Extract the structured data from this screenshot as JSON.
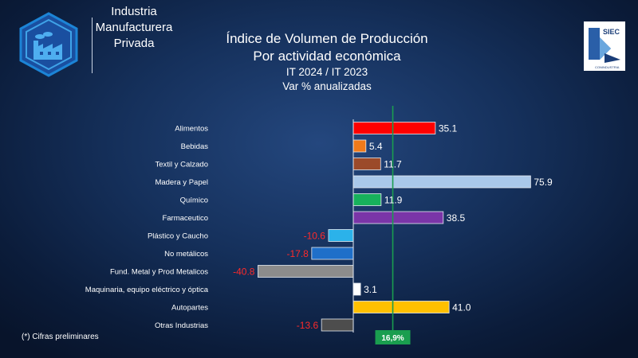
{
  "brand": {
    "lines": [
      "Industria",
      "Manufacturera",
      "Privada"
    ],
    "icon": "factory-icon"
  },
  "title": {
    "line1": "Índice de Volumen de Producción",
    "line2": "Por actividad económica",
    "line3": "IT 2024 / IT 2023",
    "line4": "Var % anualizadas"
  },
  "siec_logo": {
    "label": "SIEC",
    "sub": "CONINDUSTRIA"
  },
  "footnote": "(*) Cifras preliminares",
  "reference": {
    "label": "16,9%",
    "value": 16.9,
    "color": "#1a9e4f"
  },
  "colors": {
    "positive_value": "#ffffff",
    "negative_value": "#ff2a2a"
  },
  "chart_data": {
    "type": "bar",
    "orientation": "horizontal",
    "categories": [
      "Alimentos",
      "Bebidas",
      "Textil y Calzado",
      "Madera y Papel",
      "Químico",
      "Farmaceutico",
      "Plástico y Caucho",
      "No metálicos",
      "Fund. Metal y Prod Metalicos",
      "Maquinaria, equipo eléctrico y óptica",
      "Autopartes",
      "Otras Industrias"
    ],
    "values": [
      35.1,
      5.4,
      11.7,
      75.9,
      11.9,
      38.5,
      -10.6,
      -17.8,
      -40.8,
      3.1,
      41.0,
      -13.6
    ],
    "labels": [
      "35.1",
      "5.4",
      "11.7",
      "75.9",
      "11.9",
      "38.5",
      "-10.6",
      "-17.8",
      "-40.8",
      "3.1",
      "41.0",
      "-13.6"
    ],
    "bar_colors": [
      "#ff0000",
      "#f07a1a",
      "#9b4a2a",
      "#a9c8ea",
      "#17b15c",
      "#7a35a8",
      "#2bb2ea",
      "#1f6fc9",
      "#8c8c8c",
      "#ffffff",
      "#ffc000",
      "#4d4d4d"
    ],
    "xlim": [
      -41,
      76
    ],
    "grid": false
  }
}
